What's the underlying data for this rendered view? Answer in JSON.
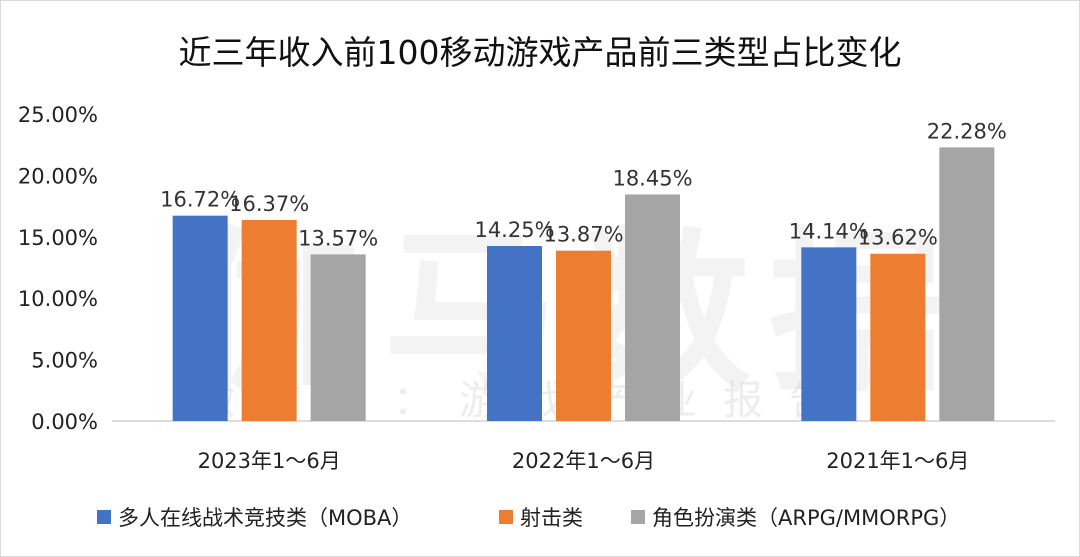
{
  "chart_data": {
    "type": "bar",
    "title": "近三年收入前100移动游戏产品前三类型占比变化",
    "categories": [
      "2023年1～6月",
      "2022年1～6月",
      "2021年1～6月"
    ],
    "series": [
      {
        "name": "多人在线战术竞技类（MOBA）",
        "color": "#4472C4",
        "values": [
          16.72,
          14.25,
          14.14
        ],
        "labels": [
          "16.72%",
          "14.25%",
          "14.14%"
        ]
      },
      {
        "name": "射击类",
        "color": "#ED7D31",
        "values": [
          16.37,
          13.87,
          13.62
        ],
        "labels": [
          "16.37%",
          "13.87%",
          "13.62%"
        ]
      },
      {
        "name": "角色扮演类（ARPG/MMORPG）",
        "color": "#A5A5A5",
        "values": [
          13.57,
          18.45,
          22.28
        ],
        "labels": [
          "13.57%",
          "18.45%",
          "22.28%"
        ]
      }
    ],
    "yticks": [
      0,
      5,
      10,
      15,
      20,
      25
    ],
    "ytick_labels": [
      "0.00%",
      "5.00%",
      "10.00%",
      "15.00%",
      "20.00%",
      "25.00%"
    ],
    "ylim": [
      0,
      25
    ],
    "xlabel": "",
    "ylabel": "",
    "grid": false,
    "legend_position": "bottom"
  },
  "watermark": {
    "main": "伽马数据",
    "sub": "微信号：游戏产业报告"
  }
}
